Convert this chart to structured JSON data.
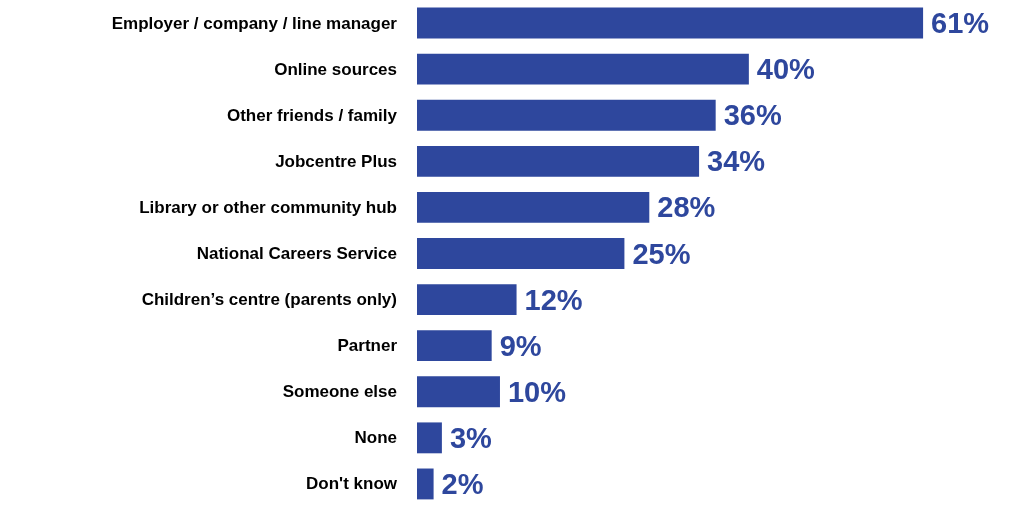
{
  "chart_data": {
    "type": "bar",
    "orientation": "horizontal",
    "categories": [
      "Employer / company / line manager",
      "Online sources",
      "Other friends / family",
      "Jobcentre Plus",
      "Library or other community hub",
      "National Careers Service",
      "Children’s centre (parents only)",
      "Partner",
      "Someone else",
      "None",
      "Don't know"
    ],
    "values": [
      61,
      40,
      36,
      34,
      28,
      25,
      12,
      9,
      10,
      3,
      2
    ],
    "value_labels": [
      "61%",
      "40%",
      "36%",
      "34%",
      "28%",
      "25%",
      "12%",
      "9%",
      "10%",
      "3%",
      "2%"
    ],
    "color": "#2e479d"
  }
}
